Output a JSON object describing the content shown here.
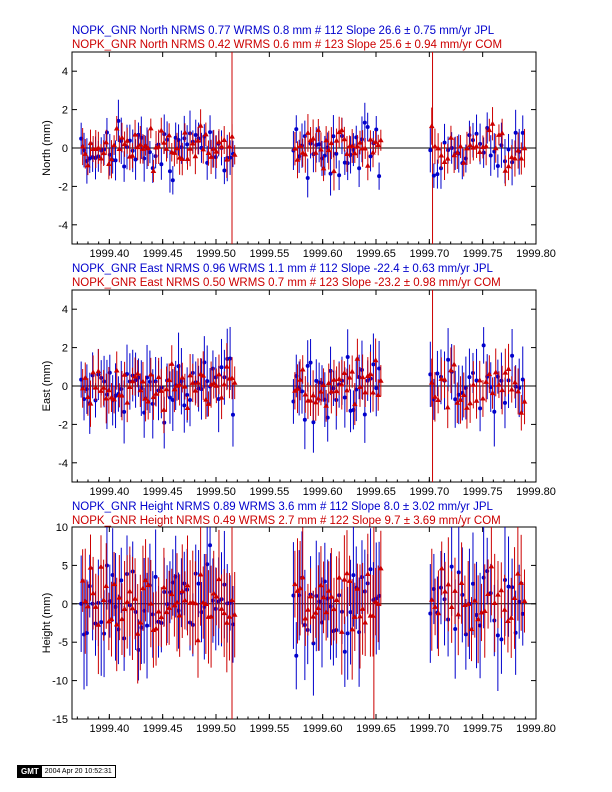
{
  "figure": {
    "background": "#ffffff",
    "blue": "#0000cc",
    "red": "#cc0000"
  },
  "badge": {
    "logo": "GMT",
    "timestamp": "2004 Apr 20 10:52:31"
  },
  "chart_data": [
    {
      "type": "scatter",
      "title_lines": [
        "NOPK_GNR North NRMS 0.77 WRMS  0.8 mm # 112 Slope   26.6 ±  0.75 mm/yr JPL",
        "NOPK_GNR North NRMS 0.42 WRMS  0.6 mm # 123 Slope   25.6 ±  0.94 mm/yr COM"
      ],
      "ylabel": "North (mm)",
      "xlim": [
        1999.365,
        1999.8
      ],
      "ylim": [
        -5,
        5
      ],
      "xticks": [
        "1999.40",
        "1999.45",
        "1999.50",
        "1999.55",
        "1999.60",
        "1999.65",
        "1999.70",
        "1999.75",
        "1999.80"
      ],
      "yticks": [
        "-4",
        "-2",
        "0",
        "2",
        "4"
      ],
      "zero_line": true,
      "series": [
        {
          "name": "JPL",
          "color": "#0000cc",
          "marker": "circle",
          "count": 112,
          "wrms": 0.8,
          "err_scale": 0.9
        },
        {
          "name": "COM",
          "color": "#cc0000",
          "marker": "triangle",
          "count": 123,
          "wrms": 0.6,
          "err_scale": 1.0
        }
      ],
      "outlier_lines": [
        1999.515,
        1999.703
      ]
    },
    {
      "type": "scatter",
      "title_lines": [
        "NOPK_GNR East NRMS 0.96 WRMS  1.1 mm # 112 Slope  -22.4 ±  0.63 mm/yr JPL",
        "NOPK_GNR East NRMS 0.50 WRMS  0.7 mm # 123 Slope  -23.2 ±  0.98 mm/yr COM"
      ],
      "ylabel": "East (mm)",
      "xlim": [
        1999.365,
        1999.8
      ],
      "ylim": [
        -5,
        5
      ],
      "xticks": [
        "1999.40",
        "1999.45",
        "1999.50",
        "1999.55",
        "1999.60",
        "1999.65",
        "1999.70",
        "1999.75",
        "1999.80"
      ],
      "yticks": [
        "-4",
        "-2",
        "0",
        "2",
        "4"
      ],
      "zero_line": true,
      "series": [
        {
          "name": "JPL",
          "color": "#0000cc",
          "marker": "circle",
          "count": 112,
          "wrms": 1.1,
          "err_scale": 1.0
        },
        {
          "name": "COM",
          "color": "#cc0000",
          "marker": "triangle",
          "count": 123,
          "wrms": 0.7,
          "err_scale": 1.1
        }
      ],
      "outlier_lines": [
        1999.703
      ]
    },
    {
      "type": "scatter",
      "title_lines": [
        "NOPK_GNR Height NRMS 0.89 WRMS  3.6 mm # 112 Slope    8.0 ±  3.02 mm/yr JPL",
        "NOPK_GNR Height NRMS 0.49 WRMS  2.7 mm # 122 Slope    9.7 ±  3.69 mm/yr COM"
      ],
      "ylabel": "Height (mm)",
      "xlim": [
        1999.365,
        1999.8
      ],
      "ylim": [
        -15,
        10
      ],
      "xticks": [
        "1999.40",
        "1999.45",
        "1999.50",
        "1999.55",
        "1999.60",
        "1999.65",
        "1999.70",
        "1999.75",
        "1999.80"
      ],
      "yticks": [
        "-15",
        "-10",
        "-5",
        "0",
        "5",
        "10"
      ],
      "zero_line": true,
      "series": [
        {
          "name": "JPL",
          "color": "#0000cc",
          "marker": "circle",
          "count": 112,
          "wrms": 3.6,
          "err_scale": 1.2
        },
        {
          "name": "COM",
          "color": "#cc0000",
          "marker": "triangle",
          "count": 122,
          "wrms": 2.7,
          "err_scale": 1.5
        }
      ],
      "outlier_lines": [
        1999.515,
        1999.648
      ]
    }
  ]
}
